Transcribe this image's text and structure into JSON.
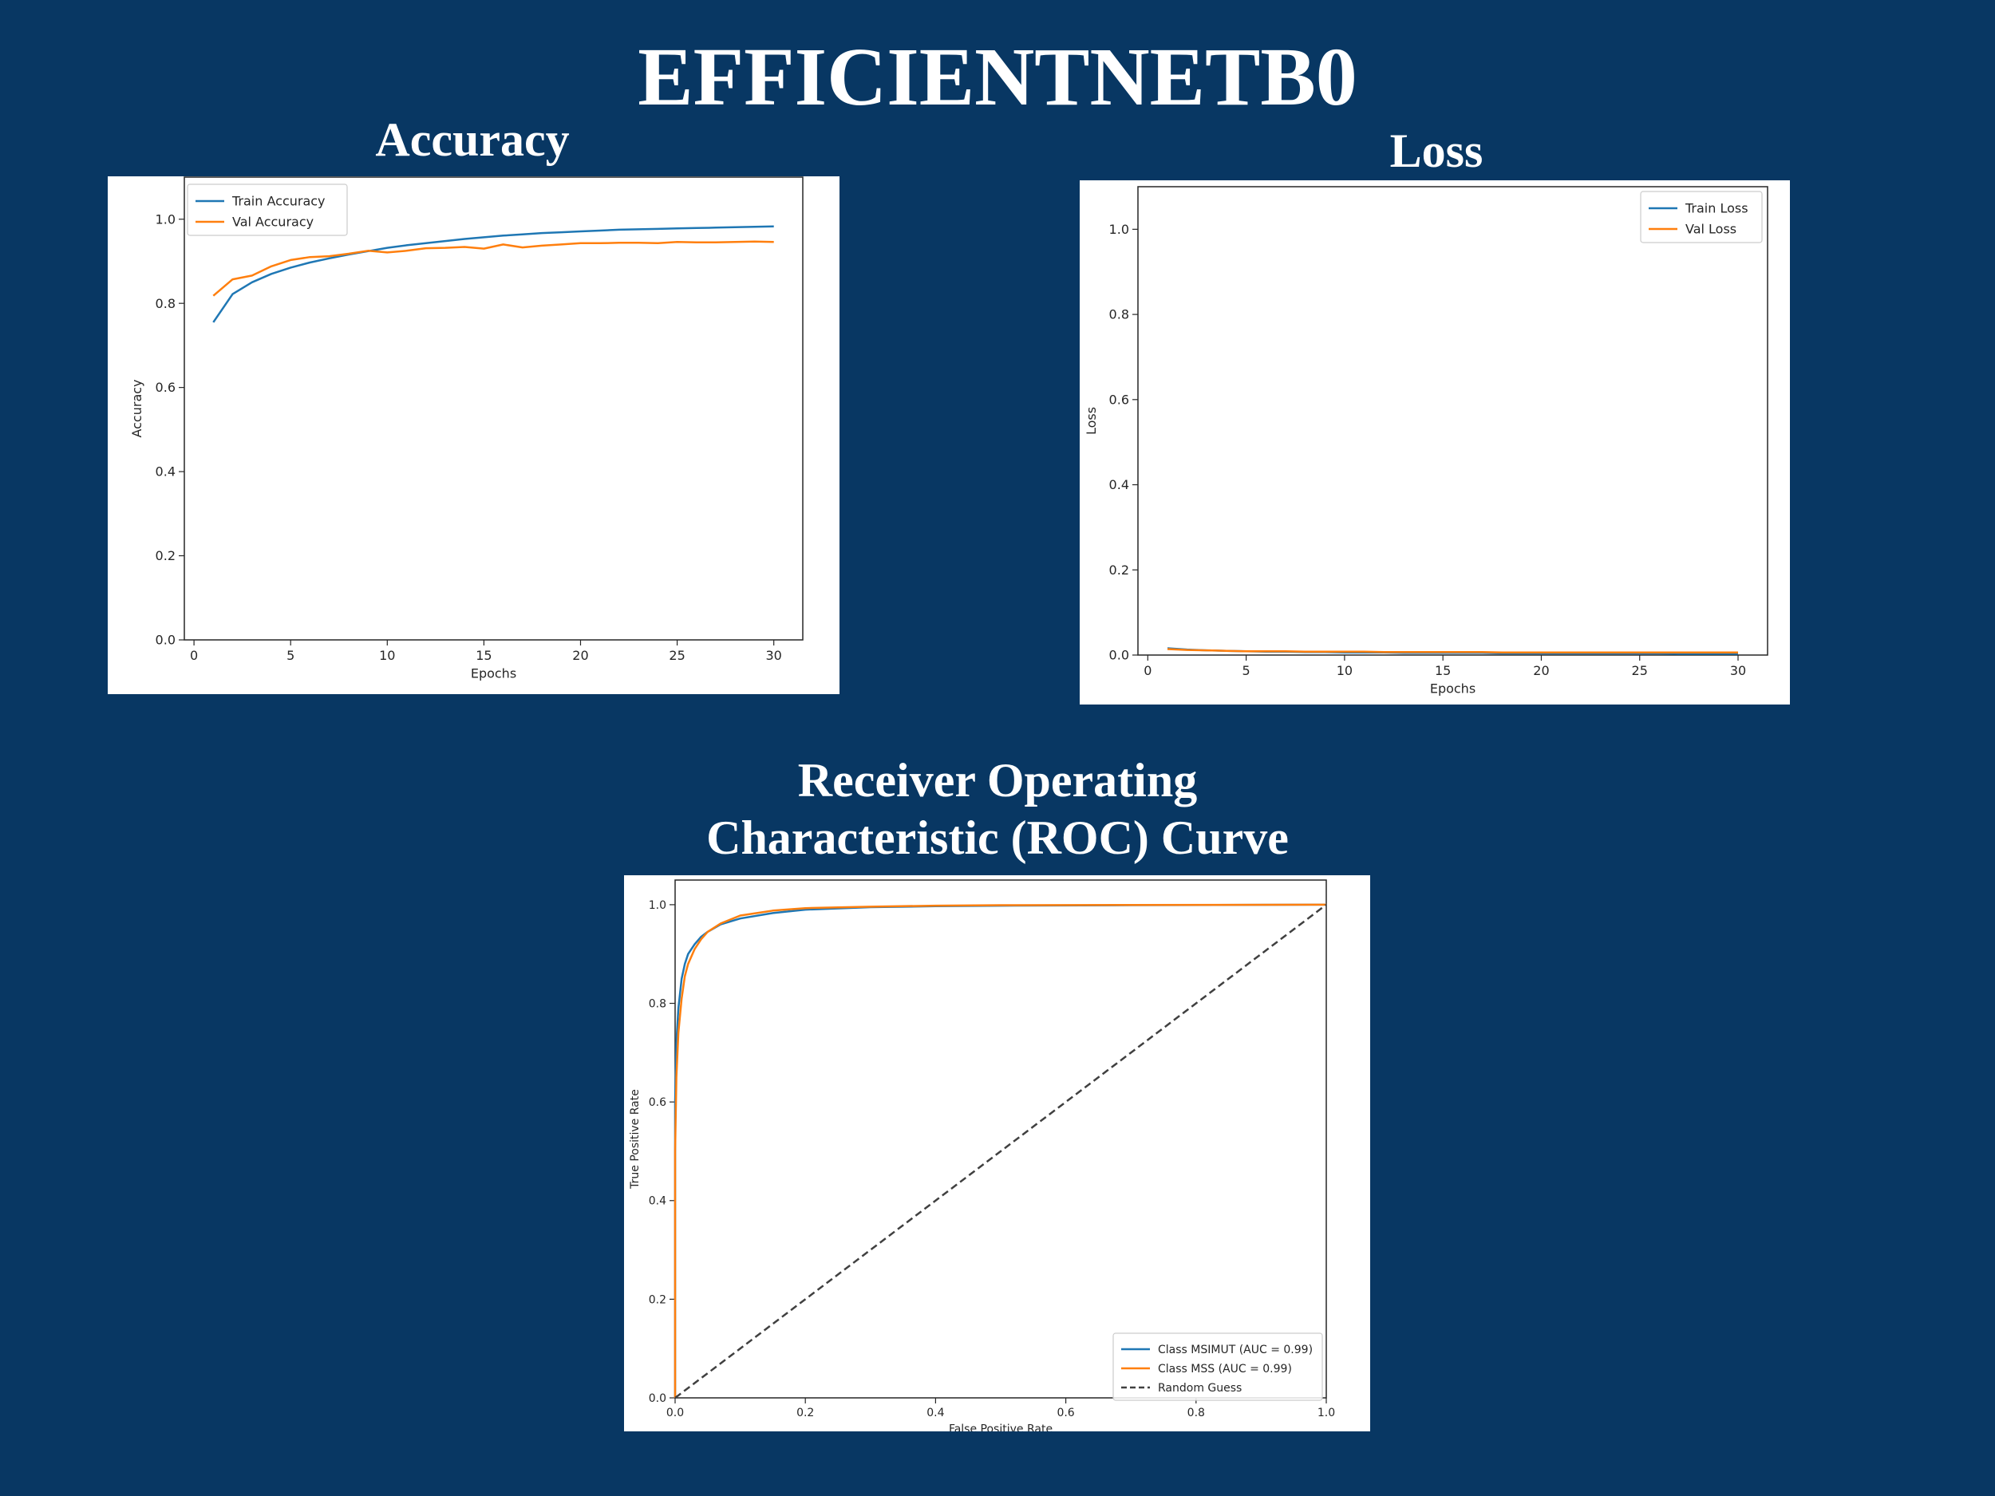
{
  "page": {
    "title": "EFFICIENTNETB0"
  },
  "panels": {
    "accuracy": {
      "title": "Accuracy"
    },
    "loss": {
      "title": "Loss"
    },
    "roc": {
      "title_line1": "Receiver Operating",
      "title_line2": "Characteristic (ROC) Curve"
    }
  },
  "colors": {
    "background": "#083763",
    "series_blue": "#1f77b4",
    "series_orange": "#ff7f0e",
    "random_guess": "#404040"
  },
  "chart_data": [
    {
      "id": "accuracy",
      "type": "line",
      "xlabel": "Epochs",
      "ylabel": "Accuracy",
      "xlim": [
        -0.5,
        31.5
      ],
      "ylim": [
        0.0,
        1.1
      ],
      "xticks": [
        0,
        5,
        10,
        15,
        20,
        25,
        30
      ],
      "yticks": [
        0.0,
        0.2,
        0.4,
        0.6,
        0.8,
        1.0
      ],
      "legend": "upper-left",
      "grid": false,
      "x": [
        1,
        2,
        3,
        4,
        5,
        6,
        7,
        8,
        9,
        10,
        11,
        12,
        13,
        14,
        15,
        16,
        17,
        18,
        19,
        20,
        21,
        22,
        23,
        24,
        25,
        26,
        27,
        28,
        29,
        30
      ],
      "series": [
        {
          "name": "Train Accuracy",
          "color": "#1f77b4",
          "values": [
            0.755,
            0.822,
            0.85,
            0.87,
            0.885,
            0.897,
            0.907,
            0.916,
            0.924,
            0.932,
            0.938,
            0.943,
            0.948,
            0.953,
            0.957,
            0.961,
            0.964,
            0.967,
            0.969,
            0.971,
            0.973,
            0.975,
            0.976,
            0.977,
            0.978,
            0.979,
            0.98,
            0.981,
            0.982,
            0.983
          ]
        },
        {
          "name": "Val Accuracy",
          "color": "#ff7f0e",
          "values": [
            0.818,
            0.857,
            0.866,
            0.888,
            0.903,
            0.91,
            0.912,
            0.918,
            0.925,
            0.921,
            0.925,
            0.931,
            0.932,
            0.934,
            0.93,
            0.94,
            0.933,
            0.937,
            0.94,
            0.943,
            0.943,
            0.944,
            0.944,
            0.943,
            0.946,
            0.945,
            0.945,
            0.946,
            0.947,
            0.946
          ]
        }
      ]
    },
    {
      "id": "loss",
      "type": "line",
      "xlabel": "Epochs",
      "ylabel": "Loss",
      "xlim": [
        -0.5,
        31.5
      ],
      "ylim": [
        0.0,
        1.1
      ],
      "xticks": [
        0,
        5,
        10,
        15,
        20,
        25,
        30
      ],
      "yticks": [
        0.0,
        0.2,
        0.4,
        0.6,
        0.8,
        1.0
      ],
      "legend": "upper-right",
      "grid": false,
      "x": [
        1,
        2,
        3,
        4,
        5,
        6,
        7,
        8,
        9,
        10,
        11,
        12,
        13,
        14,
        15,
        16,
        17,
        18,
        19,
        20,
        21,
        22,
        23,
        24,
        25,
        26,
        27,
        28,
        29,
        30
      ],
      "series": [
        {
          "name": "Train Loss",
          "color": "#1f77b4",
          "values": [
            0.016,
            0.013,
            0.011,
            0.01,
            0.009,
            0.008,
            0.008,
            0.007,
            0.007,
            0.006,
            0.006,
            0.006,
            0.005,
            0.005,
            0.005,
            0.005,
            0.005,
            0.004,
            0.004,
            0.004,
            0.004,
            0.004,
            0.004,
            0.004,
            0.004,
            0.004,
            0.003,
            0.003,
            0.003,
            0.003
          ]
        },
        {
          "name": "Val Loss",
          "color": "#ff7f0e",
          "values": [
            0.014,
            0.012,
            0.011,
            0.01,
            0.009,
            0.009,
            0.009,
            0.008,
            0.008,
            0.008,
            0.008,
            0.007,
            0.007,
            0.007,
            0.007,
            0.007,
            0.007,
            0.006,
            0.006,
            0.006,
            0.006,
            0.006,
            0.006,
            0.006,
            0.006,
            0.006,
            0.006,
            0.006,
            0.006,
            0.006
          ]
        }
      ]
    },
    {
      "id": "roc",
      "type": "line",
      "xlabel": "False Positive Rate",
      "ylabel": "True Positive Rate",
      "xlim": [
        0.0,
        1.0
      ],
      "ylim": [
        0.0,
        1.05
      ],
      "xticks": [
        0.0,
        0.2,
        0.4,
        0.6,
        0.8,
        1.0
      ],
      "yticks": [
        0.0,
        0.2,
        0.4,
        0.6,
        0.8,
        1.0
      ],
      "legend": "lower-right",
      "grid": false,
      "series": [
        {
          "name": "Class MSIMUT (AUC = 0.99)",
          "color": "#1f77b4",
          "dash": false,
          "x": [
            0.0,
            0.0,
            0.002,
            0.005,
            0.01,
            0.015,
            0.02,
            0.03,
            0.04,
            0.05,
            0.07,
            0.1,
            0.15,
            0.2,
            0.3,
            0.4,
            0.5,
            0.7,
            1.0
          ],
          "y": [
            0.0,
            0.6,
            0.72,
            0.79,
            0.85,
            0.88,
            0.9,
            0.92,
            0.935,
            0.945,
            0.96,
            0.972,
            0.983,
            0.99,
            0.995,
            0.997,
            0.998,
            0.999,
            1.0
          ]
        },
        {
          "name": "Class MSS (AUC = 0.99)",
          "color": "#ff7f0e",
          "dash": false,
          "x": [
            0.0,
            0.0,
            0.002,
            0.005,
            0.01,
            0.015,
            0.02,
            0.03,
            0.04,
            0.05,
            0.07,
            0.1,
            0.15,
            0.2,
            0.3,
            0.4,
            0.5,
            0.7,
            1.0
          ],
          "y": [
            0.0,
            0.5,
            0.65,
            0.74,
            0.81,
            0.855,
            0.88,
            0.91,
            0.93,
            0.945,
            0.962,
            0.978,
            0.988,
            0.993,
            0.996,
            0.998,
            0.999,
            0.9995,
            1.0
          ]
        },
        {
          "name": "Random Guess",
          "color": "#404040",
          "dash": true,
          "x": [
            0.0,
            1.0
          ],
          "y": [
            0.0,
            1.0
          ]
        }
      ]
    }
  ]
}
